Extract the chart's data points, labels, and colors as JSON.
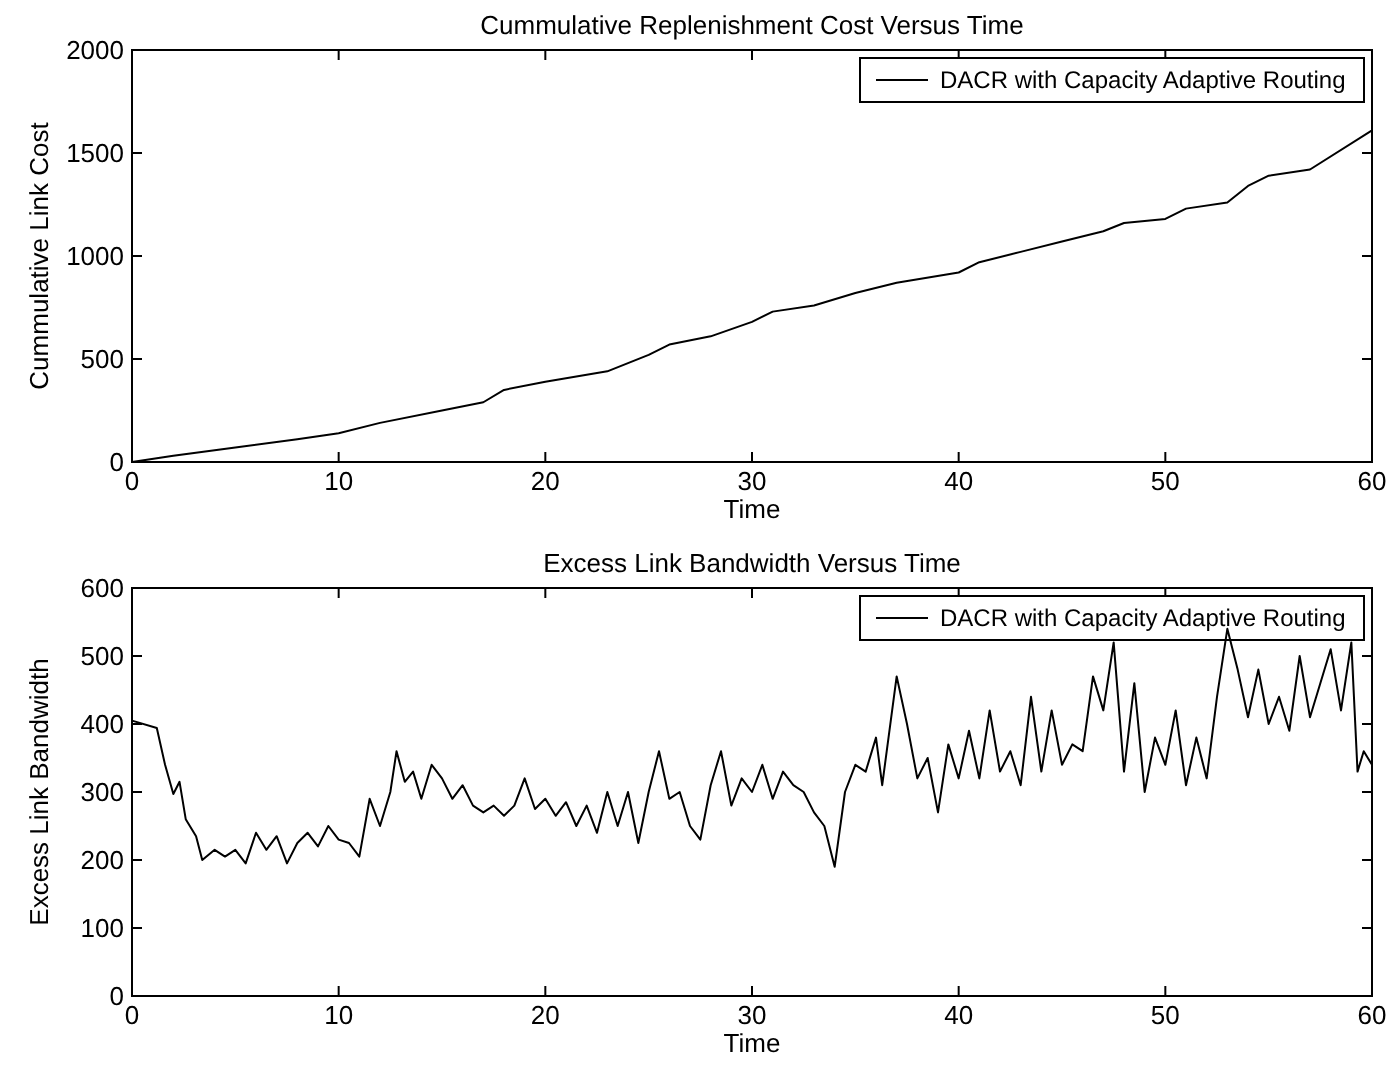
{
  "chart_data": [
    {
      "type": "line",
      "title": "Cummulative Replenishment Cost Versus Time",
      "xlabel": "Time",
      "ylabel": "Cummulative Link Cost",
      "xlim": [
        0,
        60
      ],
      "ylim": [
        0,
        2000
      ],
      "xticks": [
        0,
        10,
        20,
        30,
        40,
        50,
        60
      ],
      "yticks": [
        0,
        500,
        1000,
        1500,
        2000
      ],
      "legend": "top right",
      "grid": false,
      "series": [
        {
          "name": "DACR with Capacity Adaptive Routing",
          "color": "#000000",
          "x": [
            0,
            2,
            5,
            8,
            10,
            12,
            15,
            17,
            18,
            20,
            23,
            25,
            26,
            28,
            30,
            31,
            33,
            35,
            37,
            40,
            41,
            43,
            45,
            47,
            48,
            50,
            51,
            53,
            54,
            55,
            57,
            60,
            60
          ],
          "values": [
            0,
            30,
            70,
            110,
            140,
            190,
            250,
            290,
            350,
            390,
            440,
            520,
            570,
            610,
            680,
            730,
            760,
            820,
            870,
            920,
            970,
            1020,
            1070,
            1120,
            1160,
            1180,
            1230,
            1260,
            1340,
            1390,
            1420,
            1610,
            300
          ]
        }
      ]
    },
    {
      "type": "line",
      "title": "Excess Link Bandwidth Versus Time",
      "xlabel": "Time",
      "ylabel": "Excess Link Bandwidth",
      "xlim": [
        0,
        60
      ],
      "ylim": [
        0,
        600
      ],
      "xticks": [
        0,
        10,
        20,
        30,
        40,
        50,
        60
      ],
      "yticks": [
        0,
        100,
        200,
        300,
        400,
        500,
        600
      ],
      "legend": "top right",
      "grid": false,
      "series": [
        {
          "name": "DACR with Capacity Adaptive Routing",
          "color": "#000000",
          "x": [
            0,
            1.2,
            1.6,
            2,
            2.3,
            2.6,
            3.1,
            3.4,
            4,
            4.5,
            5,
            5.5,
            6,
            6.5,
            7,
            7.5,
            8,
            8.5,
            9,
            9.5,
            10,
            10.5,
            11,
            11.5,
            12,
            12.5,
            12.8,
            13.2,
            13.6,
            14,
            14.5,
            15,
            15.5,
            16,
            16.5,
            17,
            17.5,
            18,
            18.5,
            19,
            19.5,
            20,
            20.5,
            21,
            21.5,
            22,
            22.5,
            23,
            23.5,
            24,
            24.5,
            25,
            25.5,
            26,
            26.5,
            27,
            27.5,
            28,
            28.5,
            29,
            29.5,
            30,
            30.5,
            31,
            31.5,
            32,
            32.5,
            33,
            33.5,
            34,
            34.5,
            35,
            35.5,
            36,
            36.3,
            37,
            37.5,
            38,
            38.5,
            39,
            39.5,
            40,
            40.5,
            41,
            41.5,
            42,
            42.5,
            43,
            43.5,
            44,
            44.5,
            45,
            45.5,
            46,
            46.5,
            47,
            47.5,
            48,
            48.5,
            49,
            49.5,
            50,
            50.5,
            51,
            51.5,
            52,
            52.5,
            53,
            53.5,
            54,
            54.5,
            55,
            55.5,
            56,
            56.5,
            57,
            57.5,
            58,
            58.5,
            59,
            59.3,
            59.6,
            60,
            60
          ],
          "values": [
            405,
            394,
            340,
            297,
            315,
            260,
            235,
            200,
            215,
            205,
            215,
            195,
            240,
            215,
            235,
            195,
            225,
            240,
            220,
            250,
            230,
            225,
            205,
            290,
            250,
            300,
            360,
            315,
            330,
            290,
            340,
            320,
            290,
            310,
            280,
            270,
            280,
            265,
            280,
            320,
            275,
            290,
            265,
            285,
            250,
            280,
            240,
            300,
            250,
            300,
            225,
            300,
            360,
            290,
            300,
            250,
            230,
            310,
            360,
            280,
            320,
            300,
            340,
            290,
            330,
            310,
            300,
            270,
            250,
            190,
            300,
            340,
            330,
            380,
            310,
            470,
            400,
            320,
            350,
            270,
            370,
            320,
            390,
            320,
            420,
            330,
            360,
            310,
            440,
            330,
            420,
            340,
            370,
            360,
            470,
            420,
            520,
            330,
            460,
            300,
            380,
            340,
            420,
            310,
            380,
            320,
            440,
            540,
            480,
            410,
            480,
            400,
            440,
            390,
            500,
            410,
            460,
            510,
            420,
            520,
            330,
            360,
            340,
            110
          ]
        }
      ]
    }
  ]
}
